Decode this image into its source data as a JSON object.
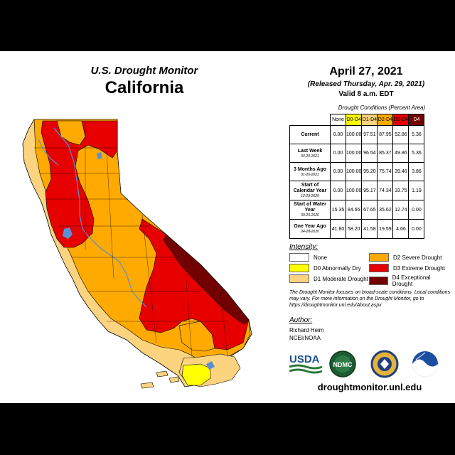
{
  "header": {
    "subtitle": "U.S. Drought Monitor",
    "title": "California"
  },
  "info": {
    "date": "April 27, 2021",
    "released": "(Released Thursday, Apr. 29, 2021)",
    "valid": "Valid 8 a.m. EDT"
  },
  "table": {
    "caption": "Drought Conditions (Percent Area)",
    "columns": [
      "None",
      "D0-D4",
      "D1-D4",
      "D2-D4",
      "D3-D4",
      "D4"
    ],
    "column_colors": [
      "#ffffff",
      "#ffff00",
      "#fcd37f",
      "#ffaa00",
      "#e60000",
      "#730000"
    ],
    "rows": [
      {
        "label": "Current",
        "date": "",
        "values": [
          "0.00",
          "100.00",
          "97.51",
          "87.95",
          "52.86",
          "5.36"
        ]
      },
      {
        "label": "Last Week",
        "date": "04-20-2021",
        "values": [
          "0.00",
          "100.00",
          "96.54",
          "85.37",
          "49.86",
          "5.36"
        ]
      },
      {
        "label": "3 Months Ago",
        "date": "01-26-2021",
        "values": [
          "0.00",
          "100.00",
          "95.20",
          "75.74",
          "39.46",
          "3.86"
        ]
      },
      {
        "label": "Start of Calendar Year",
        "date": "12-29-2020",
        "values": [
          "0.00",
          "100.00",
          "95.17",
          "74.34",
          "33.75",
          "1.19"
        ]
      },
      {
        "label": "Start of Water Year",
        "date": "09-29-2020",
        "values": [
          "15.35",
          "84.65",
          "67.65",
          "35.62",
          "12.74",
          "0.00"
        ]
      },
      {
        "label": "One Year Ago",
        "date": "04-28-2020",
        "values": [
          "41.80",
          "58.20",
          "41.58",
          "19.59",
          "4.66",
          "0.00"
        ]
      }
    ]
  },
  "legend": {
    "heading": "Intensity:",
    "items": [
      {
        "label": "None",
        "color": "#ffffff"
      },
      {
        "label": "D0 Abnormally Dry",
        "color": "#ffff00"
      },
      {
        "label": "D1 Moderate Drought",
        "color": "#fcd37f"
      },
      {
        "label": "D2 Severe Drought",
        "color": "#ffaa00"
      },
      {
        "label": "D3 Extreme Drought",
        "color": "#e60000"
      },
      {
        "label": "D4 Exceptional Drought",
        "color": "#730000"
      }
    ]
  },
  "note": "The Drought Monitor focuses on broad-scale conditions. Local conditions may vary. For more information on the Drought Monitor, go to https://droughtmonitor.unl.edu/About.aspx",
  "author": {
    "heading": "Author:",
    "name": "Richard Heim",
    "org": "NCEI/NOAA"
  },
  "logos": {
    "usda": "USDA",
    "ndmc": "NDMC"
  },
  "url": "droughtmonitor.unl.edu"
}
